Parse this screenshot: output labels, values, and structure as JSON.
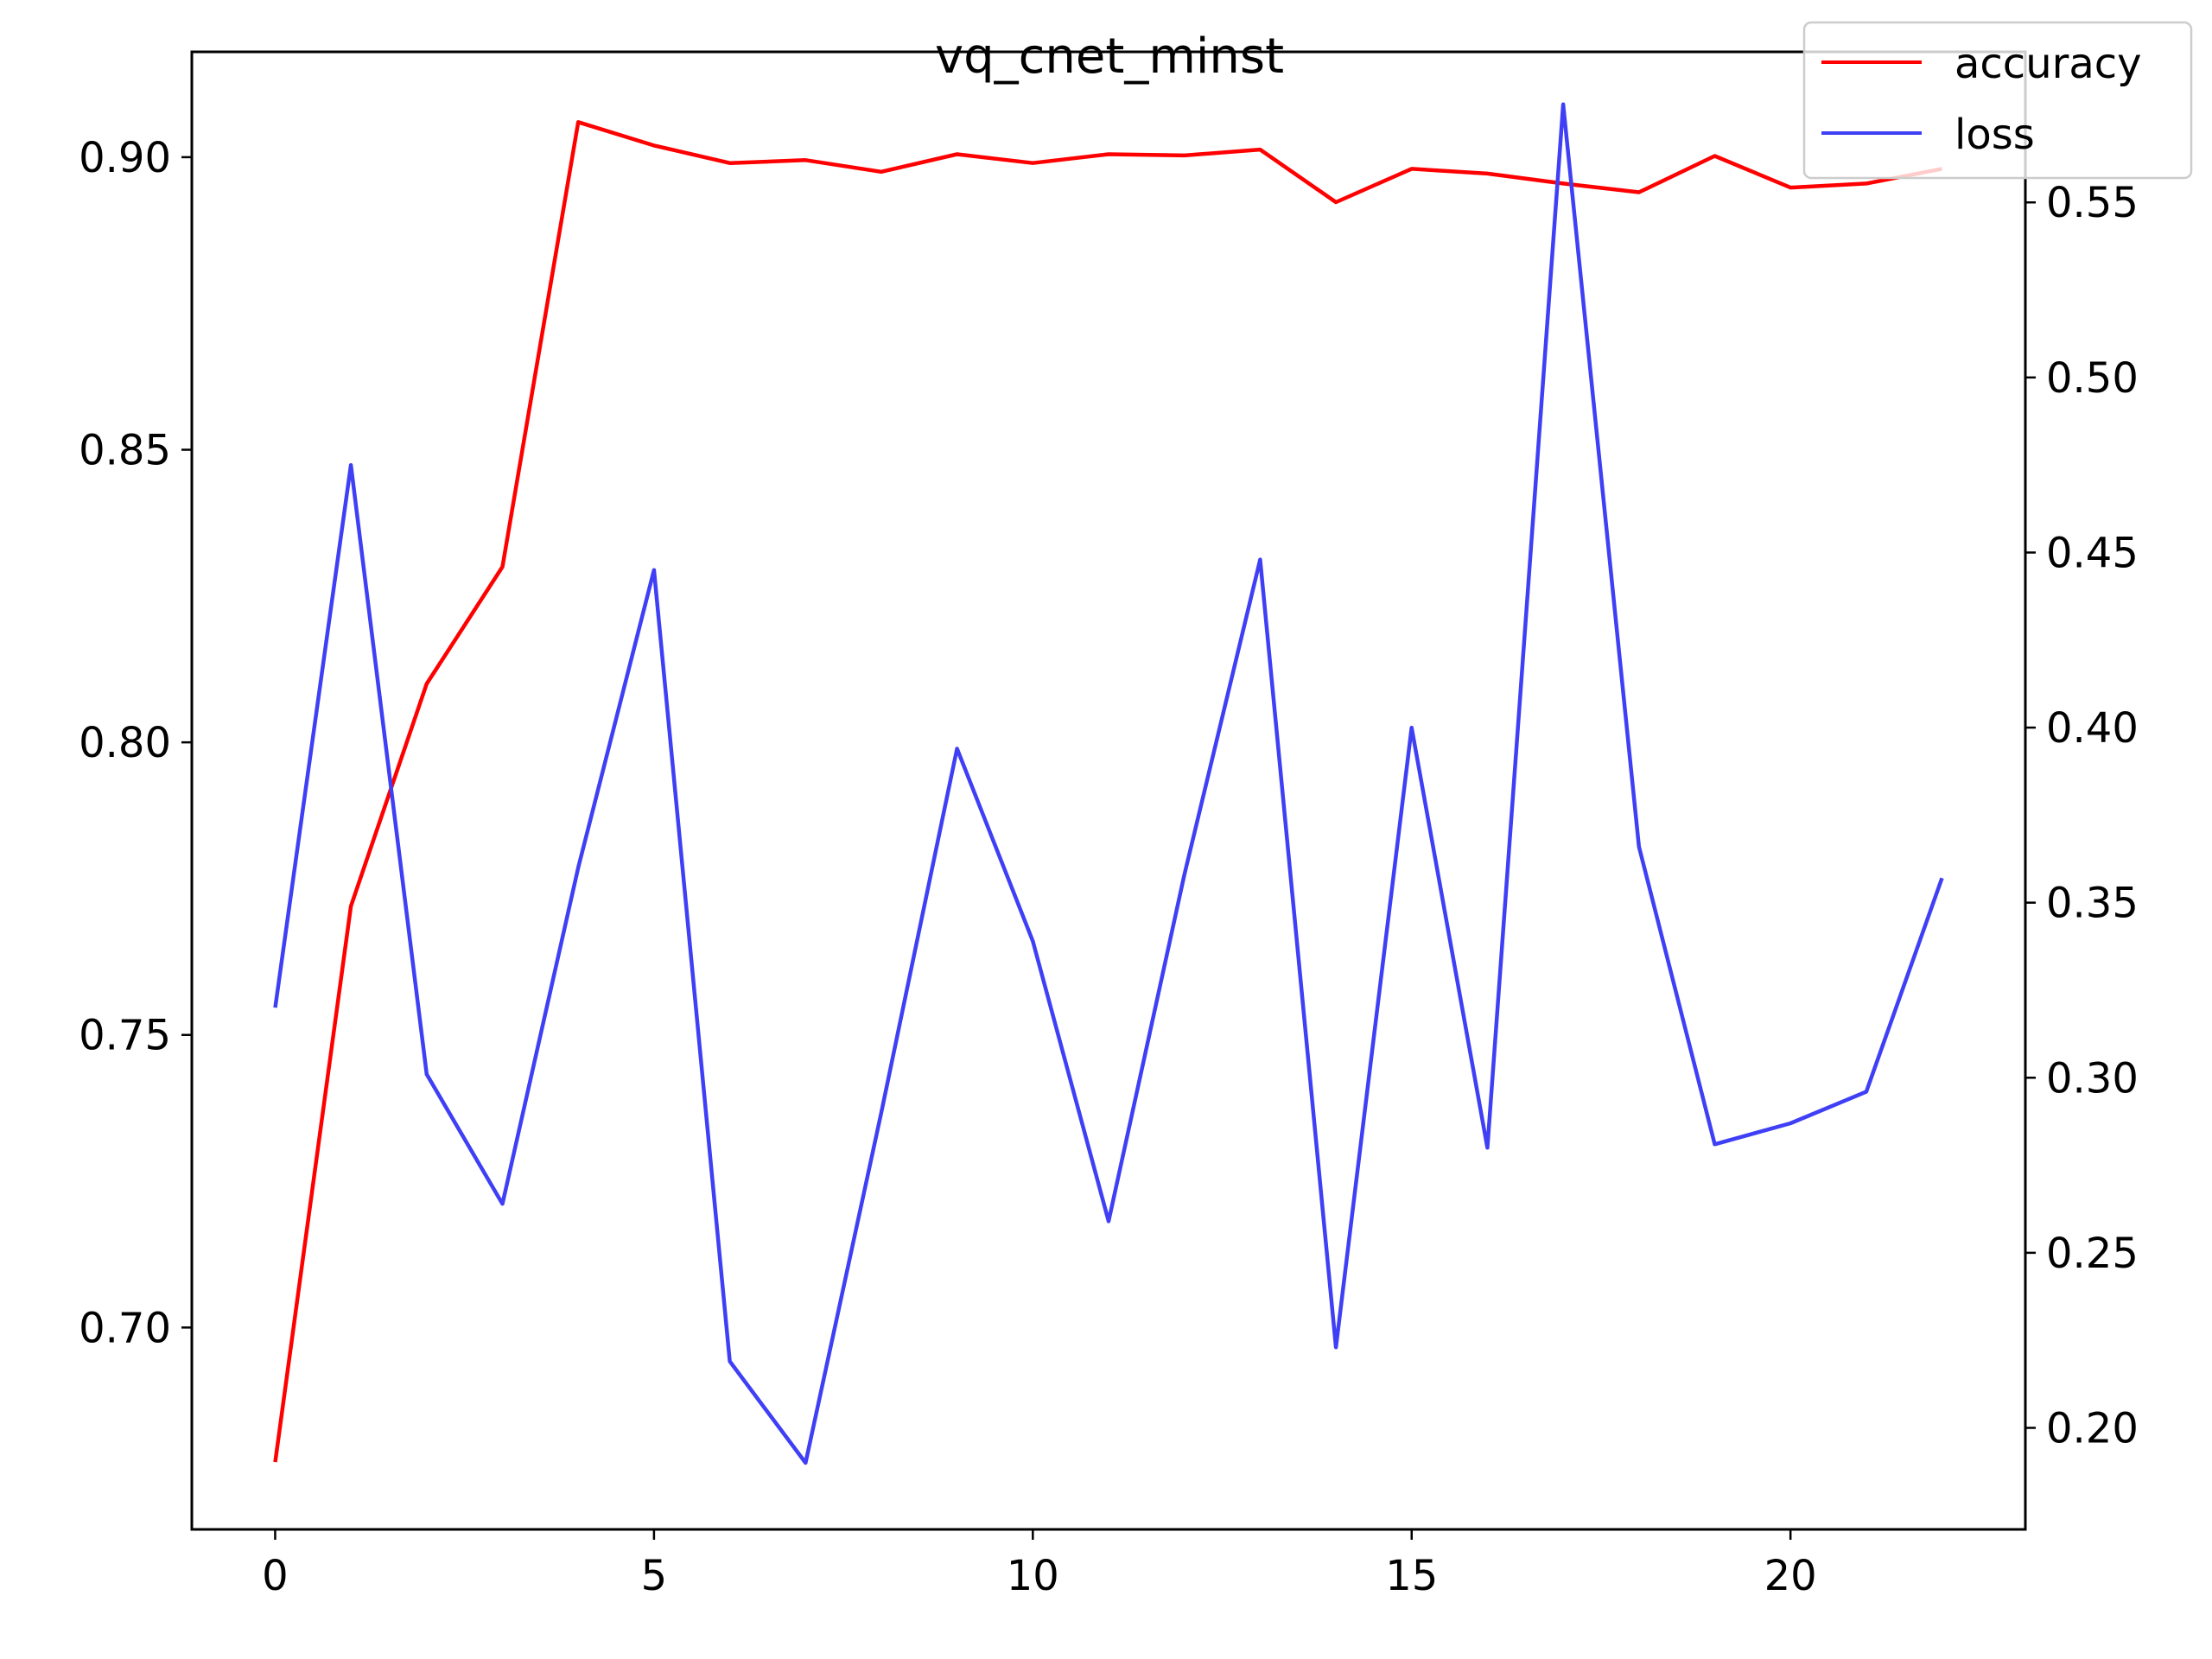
{
  "chart_data": {
    "type": "line",
    "title": "vq_cnet_minst",
    "xlabel": "",
    "ylabel": "",
    "x": [
      0,
      1,
      2,
      3,
      4,
      5,
      6,
      7,
      8,
      9,
      10,
      11,
      12,
      13,
      14,
      15,
      16,
      17,
      18,
      19,
      20,
      21,
      22
    ],
    "xlim": [
      -1.1,
      23.1
    ],
    "xticks": [
      0,
      5,
      10,
      15,
      20
    ],
    "y_left": {
      "lim": [
        0.6655,
        0.918
      ],
      "ticks": [
        0.7,
        0.75,
        0.8,
        0.85,
        0.9
      ],
      "tick_labels": [
        "0.70",
        "0.75",
        "0.80",
        "0.85",
        "0.90"
      ]
    },
    "y_right": {
      "lim": [
        0.171,
        0.593
      ],
      "ticks": [
        0.2,
        0.25,
        0.3,
        0.35,
        0.4,
        0.45,
        0.5,
        0.55
      ],
      "tick_labels": [
        "0.20",
        "0.25",
        "0.30",
        "0.35",
        "0.40",
        "0.45",
        "0.50",
        "0.55"
      ]
    },
    "series": [
      {
        "name": "accuracy",
        "axis": "left",
        "color": "#ff0000",
        "values": [
          0.677,
          0.772,
          0.81,
          0.83,
          0.906,
          0.902,
          0.899,
          0.8995,
          0.8975,
          0.9005,
          0.899,
          0.9005,
          0.9003,
          0.9013,
          0.8923,
          0.898,
          0.8972,
          0.8955,
          0.894,
          0.9002,
          0.8948,
          0.8955,
          0.898
        ]
      },
      {
        "name": "loss",
        "axis": "right",
        "color": "#3f3ff5",
        "values": [
          0.32,
          0.475,
          0.301,
          0.264,
          0.36,
          0.445,
          0.219,
          0.19,
          0.29,
          0.394,
          0.339,
          0.259,
          0.358,
          0.448,
          0.223,
          0.4,
          0.28,
          0.578,
          0.366,
          0.281,
          0.287,
          0.296,
          0.357
        ]
      }
    ],
    "legend": {
      "position": "top-right"
    },
    "grid": false
  }
}
